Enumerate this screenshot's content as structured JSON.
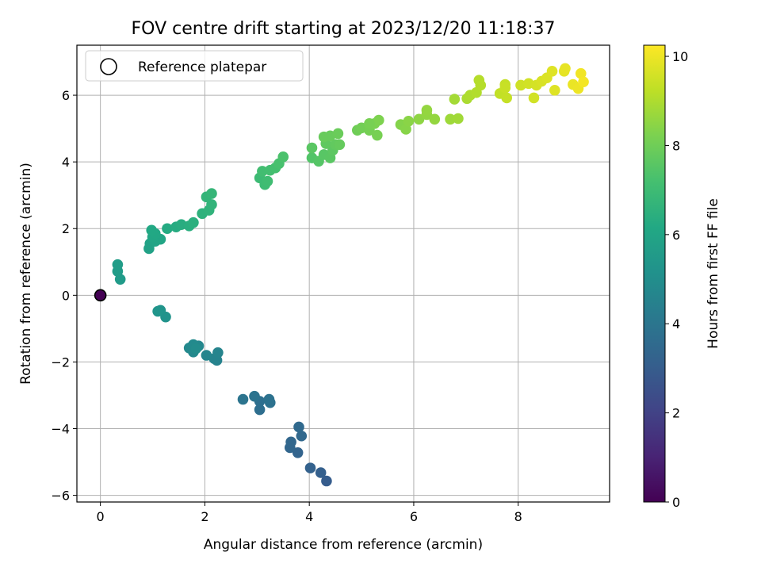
{
  "chart_data": {
    "type": "scatter",
    "title": "FOV centre drift starting at 2023/12/20 11:18:37",
    "xlabel": "Angular distance from reference (arcmin)",
    "ylabel": "Rotation from reference (arcmin)",
    "xlim": [
      -0.45,
      9.75
    ],
    "ylim": [
      -6.2,
      7.5
    ],
    "xticks": [
      0,
      2,
      4,
      6,
      8
    ],
    "xtick_labels": [
      "0",
      "2",
      "4",
      "6",
      "8"
    ],
    "yticks": [
      -6,
      -4,
      -2,
      0,
      2,
      4,
      6
    ],
    "ytick_labels": [
      "−6",
      "−4",
      "−2",
      "0",
      "2",
      "4",
      "6"
    ],
    "grid": true,
    "legend": {
      "placement": "top-left",
      "entries": [
        "Reference platepar"
      ]
    },
    "colormap": "viridis",
    "colorbar": {
      "label": "Hours from first FF file",
      "range": [
        0,
        10.25
      ],
      "ticks": [
        0,
        2,
        4,
        6,
        8,
        10
      ],
      "tick_labels": [
        "0",
        "2",
        "4",
        "6",
        "8",
        "10"
      ]
    },
    "reference_point": {
      "x": 0,
      "y": 0,
      "hours": 0
    },
    "points": [
      {
        "x": 4.33,
        "y": -5.57,
        "h": 3.0
      },
      {
        "x": 4.22,
        "y": -5.32,
        "h": 3.1
      },
      {
        "x": 4.02,
        "y": -5.18,
        "h": 3.2
      },
      {
        "x": 3.78,
        "y": -4.72,
        "h": 3.3
      },
      {
        "x": 3.63,
        "y": -4.57,
        "h": 3.35
      },
      {
        "x": 3.65,
        "y": -4.4,
        "h": 3.4
      },
      {
        "x": 3.85,
        "y": -4.22,
        "h": 3.45
      },
      {
        "x": 3.8,
        "y": -3.95,
        "h": 3.5
      },
      {
        "x": 3.05,
        "y": -3.43,
        "h": 3.7
      },
      {
        "x": 3.05,
        "y": -3.18,
        "h": 3.75
      },
      {
        "x": 3.25,
        "y": -3.22,
        "h": 3.8
      },
      {
        "x": 3.23,
        "y": -3.12,
        "h": 3.85
      },
      {
        "x": 2.95,
        "y": -3.03,
        "h": 3.9
      },
      {
        "x": 2.73,
        "y": -3.12,
        "h": 3.95
      },
      {
        "x": 2.23,
        "y": -1.95,
        "h": 4.5
      },
      {
        "x": 2.18,
        "y": -1.9,
        "h": 4.55
      },
      {
        "x": 2.25,
        "y": -1.72,
        "h": 4.6
      },
      {
        "x": 2.03,
        "y": -1.8,
        "h": 4.65
      },
      {
        "x": 1.88,
        "y": -1.52,
        "h": 4.7
      },
      {
        "x": 1.78,
        "y": -1.7,
        "h": 4.75
      },
      {
        "x": 1.7,
        "y": -1.58,
        "h": 4.8
      },
      {
        "x": 1.78,
        "y": -1.48,
        "h": 4.85
      },
      {
        "x": 1.83,
        "y": -1.6,
        "h": 4.9
      },
      {
        "x": 1.25,
        "y": -0.65,
        "h": 5.2
      },
      {
        "x": 1.15,
        "y": -0.45,
        "h": 5.25
      },
      {
        "x": 1.1,
        "y": -0.48,
        "h": 5.3
      },
      {
        "x": 0.38,
        "y": 0.48,
        "h": 5.55
      },
      {
        "x": 0.33,
        "y": 0.72,
        "h": 5.6
      },
      {
        "x": 0.33,
        "y": 0.92,
        "h": 5.65
      },
      {
        "x": 0.93,
        "y": 1.4,
        "h": 5.85
      },
      {
        "x": 0.95,
        "y": 1.55,
        "h": 5.9
      },
      {
        "x": 1.05,
        "y": 1.62,
        "h": 5.95
      },
      {
        "x": 1.15,
        "y": 1.68,
        "h": 6.0
      },
      {
        "x": 1.0,
        "y": 1.75,
        "h": 6.05
      },
      {
        "x": 1.05,
        "y": 1.85,
        "h": 6.1
      },
      {
        "x": 0.98,
        "y": 1.95,
        "h": 6.15
      },
      {
        "x": 1.28,
        "y": 2.0,
        "h": 6.25
      },
      {
        "x": 1.45,
        "y": 2.05,
        "h": 6.3
      },
      {
        "x": 1.55,
        "y": 2.12,
        "h": 6.35
      },
      {
        "x": 1.7,
        "y": 2.08,
        "h": 6.4
      },
      {
        "x": 1.78,
        "y": 2.18,
        "h": 6.45
      },
      {
        "x": 1.95,
        "y": 2.45,
        "h": 6.55
      },
      {
        "x": 2.08,
        "y": 2.55,
        "h": 6.6
      },
      {
        "x": 2.13,
        "y": 2.72,
        "h": 6.65
      },
      {
        "x": 2.03,
        "y": 2.95,
        "h": 6.7
      },
      {
        "x": 2.13,
        "y": 3.05,
        "h": 6.75
      },
      {
        "x": 3.05,
        "y": 3.52,
        "h": 6.95
      },
      {
        "x": 3.15,
        "y": 3.32,
        "h": 7.0
      },
      {
        "x": 3.2,
        "y": 3.42,
        "h": 7.05
      },
      {
        "x": 3.1,
        "y": 3.72,
        "h": 7.1
      },
      {
        "x": 3.25,
        "y": 3.75,
        "h": 7.15
      },
      {
        "x": 3.35,
        "y": 3.82,
        "h": 7.2
      },
      {
        "x": 3.42,
        "y": 3.95,
        "h": 7.25
      },
      {
        "x": 3.5,
        "y": 4.15,
        "h": 7.3
      },
      {
        "x": 4.05,
        "y": 4.12,
        "h": 7.45
      },
      {
        "x": 4.18,
        "y": 4.02,
        "h": 7.5
      },
      {
        "x": 4.28,
        "y": 4.22,
        "h": 7.55
      },
      {
        "x": 4.4,
        "y": 4.12,
        "h": 7.6
      },
      {
        "x": 4.45,
        "y": 4.35,
        "h": 7.65
      },
      {
        "x": 4.32,
        "y": 4.55,
        "h": 7.7
      },
      {
        "x": 4.5,
        "y": 4.52,
        "h": 7.75
      },
      {
        "x": 4.58,
        "y": 4.52,
        "h": 7.8
      },
      {
        "x": 4.05,
        "y": 4.42,
        "h": 7.6
      },
      {
        "x": 4.28,
        "y": 4.75,
        "h": 7.85
      },
      {
        "x": 4.4,
        "y": 4.78,
        "h": 7.85
      },
      {
        "x": 4.55,
        "y": 4.85,
        "h": 7.9
      },
      {
        "x": 4.92,
        "y": 4.95,
        "h": 8.0
      },
      {
        "x": 5.0,
        "y": 5.02,
        "h": 8.05
      },
      {
        "x": 5.15,
        "y": 4.95,
        "h": 8.1
      },
      {
        "x": 5.3,
        "y": 4.8,
        "h": 8.15
      },
      {
        "x": 5.25,
        "y": 5.15,
        "h": 8.2
      },
      {
        "x": 5.33,
        "y": 5.25,
        "h": 8.25
      },
      {
        "x": 5.15,
        "y": 5.15,
        "h": 8.15
      },
      {
        "x": 5.75,
        "y": 5.12,
        "h": 8.35
      },
      {
        "x": 5.85,
        "y": 4.98,
        "h": 8.4
      },
      {
        "x": 5.9,
        "y": 5.22,
        "h": 8.45
      },
      {
        "x": 6.1,
        "y": 5.28,
        "h": 8.5
      },
      {
        "x": 6.25,
        "y": 5.42,
        "h": 8.55
      },
      {
        "x": 6.4,
        "y": 5.28,
        "h": 8.6
      },
      {
        "x": 6.25,
        "y": 5.55,
        "h": 8.6
      },
      {
        "x": 6.7,
        "y": 5.28,
        "h": 8.75
      },
      {
        "x": 6.85,
        "y": 5.3,
        "h": 8.8
      },
      {
        "x": 6.78,
        "y": 5.88,
        "h": 8.85
      },
      {
        "x": 7.02,
        "y": 5.9,
        "h": 8.95
      },
      {
        "x": 7.08,
        "y": 6.0,
        "h": 9.0
      },
      {
        "x": 7.2,
        "y": 6.08,
        "h": 9.05
      },
      {
        "x": 7.28,
        "y": 6.3,
        "h": 9.1
      },
      {
        "x": 7.25,
        "y": 6.45,
        "h": 9.1
      },
      {
        "x": 7.65,
        "y": 6.05,
        "h": 9.3
      },
      {
        "x": 7.78,
        "y": 5.92,
        "h": 9.35
      },
      {
        "x": 7.75,
        "y": 6.32,
        "h": 9.35
      },
      {
        "x": 7.75,
        "y": 6.22,
        "h": 9.4
      },
      {
        "x": 8.05,
        "y": 6.3,
        "h": 9.5
      },
      {
        "x": 8.2,
        "y": 6.35,
        "h": 9.55
      },
      {
        "x": 8.3,
        "y": 5.92,
        "h": 9.55
      },
      {
        "x": 8.35,
        "y": 6.3,
        "h": 9.6
      },
      {
        "x": 8.45,
        "y": 6.42,
        "h": 9.65
      },
      {
        "x": 8.55,
        "y": 6.52,
        "h": 9.7
      },
      {
        "x": 8.65,
        "y": 6.72,
        "h": 9.75
      },
      {
        "x": 8.7,
        "y": 6.15,
        "h": 9.75
      },
      {
        "x": 8.88,
        "y": 6.72,
        "h": 9.85
      },
      {
        "x": 8.9,
        "y": 6.8,
        "h": 9.9
      },
      {
        "x": 9.05,
        "y": 6.32,
        "h": 9.95
      },
      {
        "x": 9.15,
        "y": 6.2,
        "h": 10.0
      },
      {
        "x": 9.2,
        "y": 6.65,
        "h": 10.05
      },
      {
        "x": 9.25,
        "y": 6.4,
        "h": 10.1
      }
    ]
  }
}
